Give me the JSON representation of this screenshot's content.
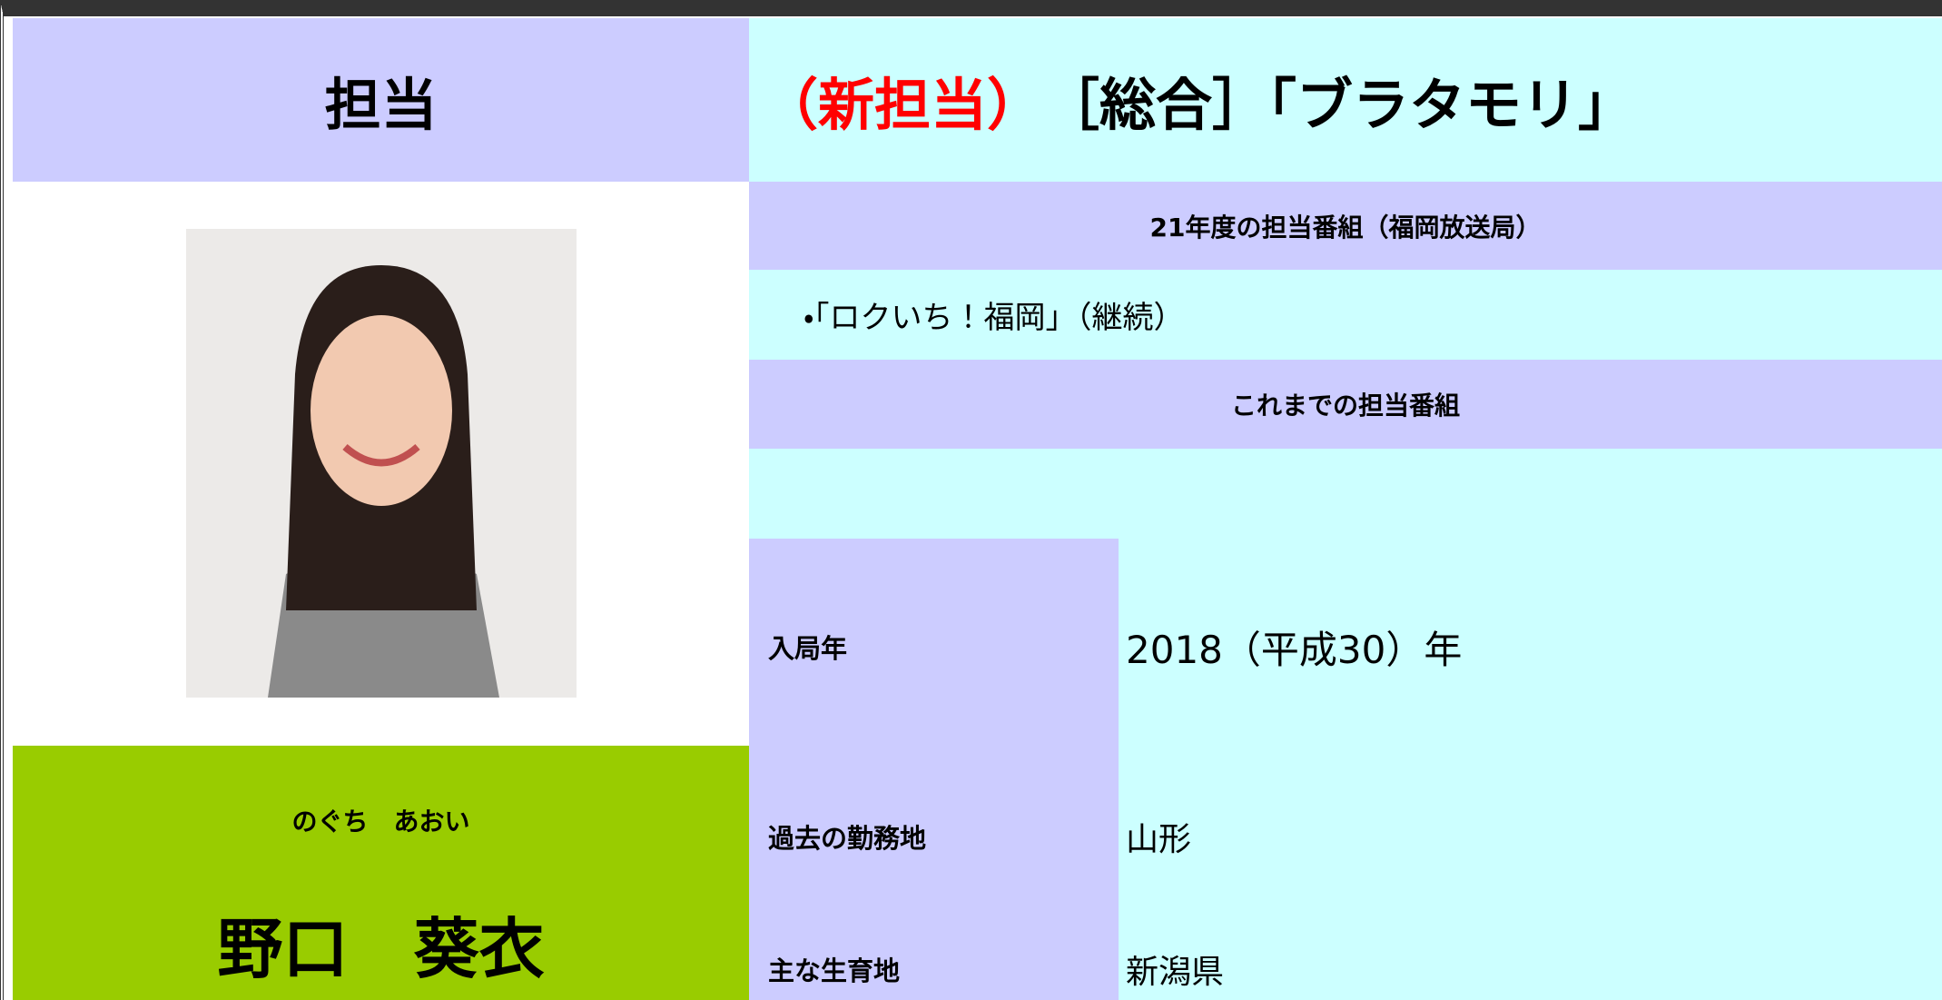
{
  "header": {
    "label": "担当",
    "title_prefix": "（新担当）",
    "title": "［総合］「ブラタモリ」"
  },
  "name": {
    "furigana": "のぐち　あおい",
    "kanji": "野口　葵衣"
  },
  "programs": {
    "heading": "21年度の担当番組（福岡放送局）",
    "items": [
      "・「ロクいち！福岡」（継続）"
    ]
  },
  "history": {
    "heading": "これまでの担当番組"
  },
  "profile": {
    "rows": [
      [
        "入局年",
        "2018（平成30）年"
      ],
      [
        "過去の勤務地",
        "山形"
      ],
      [
        "主な生育地",
        "新潟県"
      ]
    ]
  }
}
